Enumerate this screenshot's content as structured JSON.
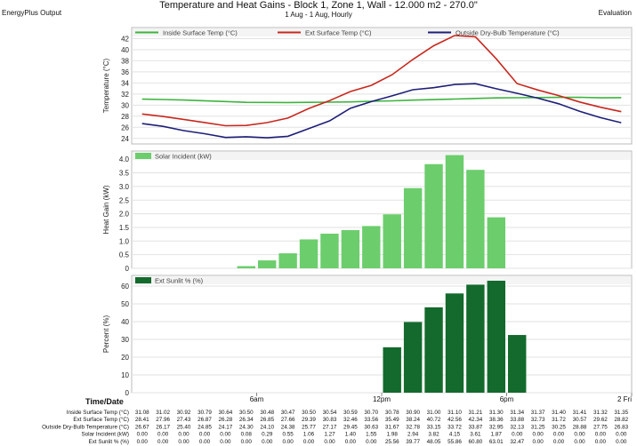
{
  "header": {
    "left": "EnergyPlus Output",
    "title": "Temperature and Heat Gains - Block 1, Zone 1, Wall - 12.000 m2 - 270.0\"",
    "subtitle": "1 Aug - 1 Aug, Hourly",
    "right": "Evaluation"
  },
  "chart_data": [
    {
      "type": "line",
      "ylabel": "Temperature (°C)",
      "ylim": [
        23,
        44
      ],
      "yticks": [
        24,
        26,
        28,
        30,
        32,
        34,
        36,
        38,
        40,
        42
      ],
      "legend_placement": "top",
      "x": [
        1,
        2,
        3,
        4,
        5,
        6,
        7,
        8,
        9,
        10,
        11,
        12,
        13,
        14,
        15,
        16,
        17,
        18,
        19,
        20,
        21,
        22,
        23,
        24
      ],
      "series": [
        {
          "name": "Inside Surface Temp (°C)",
          "color": "#3cb43c",
          "values": [
            31.08,
            31.02,
            30.92,
            30.79,
            30.64,
            30.5,
            30.48,
            30.47,
            30.5,
            30.54,
            30.59,
            30.7,
            30.78,
            30.9,
            31.0,
            31.1,
            31.21,
            31.3,
            31.34,
            31.37,
            31.4,
            31.41,
            31.32,
            31.35
          ]
        },
        {
          "name": "Ext Surface Temp (°C)",
          "color": "#c8281e",
          "values": [
            28.41,
            27.96,
            27.43,
            26.87,
            26.28,
            26.34,
            26.85,
            27.66,
            29.39,
            30.83,
            32.46,
            33.56,
            35.49,
            38.24,
            40.72,
            42.56,
            42.34,
            38.36,
            33.88,
            32.73,
            31.72,
            30.57,
            29.62,
            28.82
          ]
        },
        {
          "name": "Outside Dry-Bulb Temperature (°C)",
          "color": "#1e1e78",
          "values": [
            26.67,
            26.17,
            25.4,
            24.85,
            24.17,
            24.3,
            24.1,
            24.38,
            25.77,
            27.17,
            29.45,
            30.63,
            31.67,
            32.78,
            33.15,
            33.72,
            33.87,
            32.95,
            32.13,
            31.25,
            30.25,
            28.88,
            27.75,
            26.83
          ]
        }
      ]
    },
    {
      "type": "bar",
      "ylabel": "Heat Gain (kW)",
      "ylim": [
        0,
        4.3
      ],
      "yticks": [
        "0",
        "0.5",
        "1.0",
        "1.5",
        "2.0",
        "2.5",
        "3.0",
        "3.5",
        "4.0"
      ],
      "ytick_values": [
        0,
        0.5,
        1.0,
        1.5,
        2.0,
        2.5,
        3.0,
        3.5,
        4.0
      ],
      "legend_placement": "top-left",
      "x": [
        1,
        2,
        3,
        4,
        5,
        6,
        7,
        8,
        9,
        10,
        11,
        12,
        13,
        14,
        15,
        16,
        17,
        18,
        19,
        20,
        21,
        22,
        23,
        24
      ],
      "series": [
        {
          "name": "Solar Incident (kW)",
          "color": "#6ccd6c",
          "values": [
            0.0,
            0.0,
            0.0,
            0.0,
            0.0,
            0.08,
            0.29,
            0.55,
            1.06,
            1.27,
            1.4,
            1.55,
            1.98,
            2.94,
            3.82,
            4.15,
            3.61,
            1.87,
            0.0,
            0.0,
            0.0,
            0.0,
            0.0,
            0.0
          ]
        }
      ]
    },
    {
      "type": "bar",
      "ylabel": "Percent (%)",
      "ylim": [
        0,
        66
      ],
      "yticks": [
        0,
        10,
        20,
        30,
        40,
        50,
        60
      ],
      "legend_placement": "top-left",
      "x": [
        1,
        2,
        3,
        4,
        5,
        6,
        7,
        8,
        9,
        10,
        11,
        12,
        13,
        14,
        15,
        16,
        17,
        18,
        19,
        20,
        21,
        22,
        23,
        24
      ],
      "series": [
        {
          "name": "Ext Sunlit % (%)",
          "color": "#136a2c",
          "values": [
            0.0,
            0.0,
            0.0,
            0.0,
            0.0,
            0.0,
            0.0,
            0.0,
            0.0,
            0.0,
            0.0,
            0.0,
            25.56,
            39.77,
            48.05,
            55.86,
            60.8,
            63.01,
            32.47,
            0.0,
            0.0,
            0.0,
            0.0,
            0.0
          ]
        }
      ]
    }
  ],
  "xaxis": {
    "label": "Time/Date",
    "ticks": [
      {
        "hour": 6,
        "label": "6am"
      },
      {
        "hour": 12,
        "label": "12pm"
      },
      {
        "hour": 18,
        "label": "6pm"
      },
      {
        "hour": 24,
        "label": "2 Fri"
      }
    ]
  },
  "table": {
    "rows": [
      {
        "label": "Inside Surface Temp (°C)",
        "values": [
          "31.08",
          "31.02",
          "30.92",
          "30.79",
          "30.64",
          "30.50",
          "30.48",
          "30.47",
          "30.50",
          "30.54",
          "30.59",
          "30.70",
          "30.78",
          "30.90",
          "31.00",
          "31.10",
          "31.21",
          "31.30",
          "31.34",
          "31.37",
          "31.40",
          "31.41",
          "31.32",
          "31.35"
        ]
      },
      {
        "label": "Ext Surface Temp (°C)",
        "values": [
          "28.41",
          "27.96",
          "27.43",
          "26.87",
          "26.28",
          "26.34",
          "26.85",
          "27.66",
          "29.39",
          "30.83",
          "32.46",
          "33.56",
          "35.49",
          "38.24",
          "40.72",
          "42.56",
          "42.34",
          "38.36",
          "33.88",
          "32.73",
          "31.72",
          "30.57",
          "29.62",
          "28.82"
        ]
      },
      {
        "label": "Outside Dry-Bulb Temperature (°C)",
        "values": [
          "26.67",
          "26.17",
          "25.40",
          "24.85",
          "24.17",
          "24.30",
          "24.10",
          "24.38",
          "25.77",
          "27.17",
          "29.45",
          "30.63",
          "31.67",
          "32.78",
          "33.15",
          "33.72",
          "33.87",
          "32.95",
          "32.13",
          "31.25",
          "30.25",
          "28.88",
          "27.75",
          "26.83"
        ]
      },
      {
        "label": "Solar Incident (kW)",
        "values": [
          "0.00",
          "0.00",
          "0.00",
          "0.00",
          "0.00",
          "0.08",
          "0.29",
          "0.55",
          "1.06",
          "1.27",
          "1.40",
          "1.55",
          "1.98",
          "2.94",
          "3.82",
          "4.15",
          "3.61",
          "1.87",
          "0.00",
          "0.00",
          "0.00",
          "0.00",
          "0.00",
          "0.00"
        ]
      },
      {
        "label": "Ext Sunlit % (%)",
        "values": [
          "0.00",
          "0.00",
          "0.00",
          "0.00",
          "0.00",
          "0.00",
          "0.00",
          "0.00",
          "0.00",
          "0.00",
          "0.00",
          "0.00",
          "25.56",
          "39.77",
          "48.05",
          "55.86",
          "60.80",
          "63.01",
          "32.47",
          "0.00",
          "0.00",
          "0.00",
          "0.00",
          "0.00"
        ]
      }
    ]
  }
}
